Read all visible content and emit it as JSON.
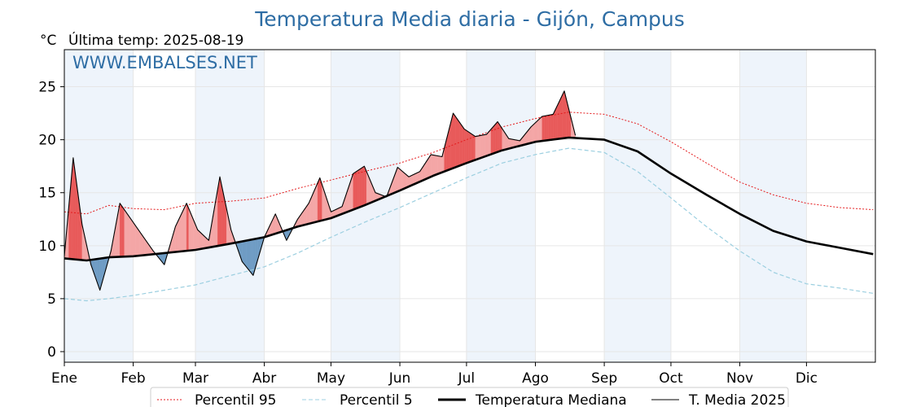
{
  "chart_data": {
    "type": "line",
    "title": "Temperatura Media diaria - Gijón, Campus",
    "subtitle": "Última temp: 2025-08-19",
    "unit": "°C",
    "watermark": "WWW.EMBALSES.NET",
    "ylim": [
      -1,
      28.5
    ],
    "y_ticks": [
      0,
      5,
      10,
      15,
      20,
      25
    ],
    "x_tick_labels": [
      "Ene",
      "Feb",
      "Mar",
      "Abr",
      "May",
      "Jun",
      "Jul",
      "Ago",
      "Sep",
      "Oct",
      "Nov",
      "Dic"
    ],
    "month_start_days": [
      0,
      31,
      59,
      90,
      120,
      151,
      181,
      212,
      243,
      273,
      304,
      334
    ],
    "grid": true,
    "legend_position": "bottom",
    "colors": {
      "above": "#f4a6a6",
      "above_strong": "#e85a5a",
      "below": "#6f9cc4",
      "p95": "#e41a1c",
      "p5": "#9ccfe0",
      "median": "#000000",
      "current": "#000000",
      "band": "#eef4fb"
    },
    "series": [
      {
        "name": "Percentil 95",
        "style": "dotted-red",
        "x": [
          0,
          10,
          20,
          31,
          45,
          59,
          75,
          90,
          105,
          120,
          135,
          151,
          166,
          181,
          197,
          212,
          227,
          243,
          258,
          273,
          289,
          304,
          319,
          334,
          349,
          364
        ],
        "values": [
          13.2,
          13.0,
          13.8,
          13.5,
          13.4,
          14.0,
          14.2,
          14.5,
          15.4,
          16.2,
          17.0,
          17.8,
          18.8,
          20.0,
          21.2,
          22.0,
          22.6,
          22.4,
          21.5,
          19.8,
          17.8,
          16.0,
          14.8,
          14.0,
          13.6,
          13.4
        ]
      },
      {
        "name": "Percentil 5",
        "style": "dashed-lightblue",
        "x": [
          0,
          10,
          20,
          31,
          45,
          59,
          75,
          90,
          105,
          120,
          135,
          151,
          166,
          181,
          197,
          212,
          227,
          243,
          258,
          273,
          289,
          304,
          319,
          334,
          349,
          364
        ],
        "values": [
          5.0,
          4.8,
          5.0,
          5.3,
          5.8,
          6.3,
          7.2,
          8.0,
          9.3,
          10.8,
          12.2,
          13.6,
          15.0,
          16.4,
          17.8,
          18.6,
          19.2,
          18.8,
          17.0,
          14.5,
          11.8,
          9.5,
          7.5,
          6.4,
          6.0,
          5.5
        ]
      },
      {
        "name": "Temperatura Mediana",
        "style": "thick-black",
        "x": [
          0,
          10,
          20,
          31,
          45,
          59,
          75,
          90,
          105,
          120,
          135,
          151,
          166,
          181,
          197,
          212,
          227,
          243,
          258,
          273,
          289,
          304,
          319,
          334,
          349,
          364
        ],
        "values": [
          8.8,
          8.6,
          8.9,
          9.0,
          9.3,
          9.6,
          10.2,
          10.8,
          11.8,
          12.6,
          13.8,
          15.2,
          16.6,
          17.8,
          19.0,
          19.8,
          20.2,
          20.0,
          18.9,
          16.8,
          14.8,
          13.0,
          11.4,
          10.4,
          9.8,
          9.2
        ]
      },
      {
        "name": "T. Media 2025",
        "style": "thin-black",
        "x": [
          0,
          4,
          8,
          12,
          16,
          21,
          25,
          30,
          35,
          40,
          45,
          50,
          55,
          60,
          65,
          70,
          75,
          80,
          85,
          90,
          95,
          100,
          105,
          110,
          115,
          120,
          125,
          130,
          135,
          140,
          145,
          150,
          155,
          160,
          165,
          170,
          175,
          180,
          185,
          190,
          195,
          200,
          205,
          210,
          215,
          220,
          225,
          230
        ],
        "values": [
          9.0,
          18.3,
          12.0,
          8.2,
          5.8,
          9.5,
          14.0,
          12.5,
          11.0,
          9.5,
          8.2,
          11.8,
          14.0,
          11.5,
          10.5,
          16.5,
          11.5,
          8.5,
          7.2,
          10.8,
          13.0,
          10.5,
          12.5,
          14.0,
          16.4,
          13.2,
          13.7,
          16.8,
          17.5,
          15.0,
          14.6,
          17.4,
          16.5,
          17.0,
          18.6,
          18.4,
          22.5,
          21.0,
          20.3,
          20.5,
          21.7,
          20.1,
          19.9,
          21.2,
          22.2,
          22.4,
          24.6,
          20.4
        ]
      }
    ]
  }
}
